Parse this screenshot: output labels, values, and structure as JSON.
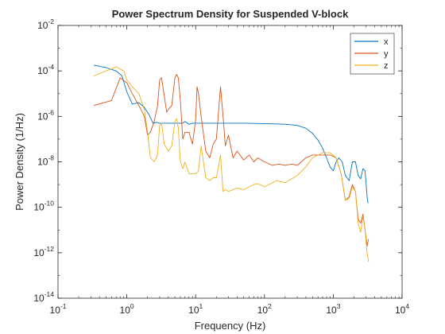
{
  "chart_data": {
    "type": "line",
    "title": "Power Spectrum Density for Suspended V-block",
    "xlabel": "Frequency (Hz)",
    "ylabel": "Power Density (1/Hz)",
    "xscale": "log",
    "yscale": "log",
    "xlim": [
      0.1,
      10000
    ],
    "ylim": [
      1e-14,
      0.01
    ],
    "xticks": [
      {
        "value": 0.1,
        "base": "10",
        "exp": "-1"
      },
      {
        "value": 1,
        "base": "10",
        "exp": "0"
      },
      {
        "value": 10,
        "base": "10",
        "exp": "1"
      },
      {
        "value": 100,
        "base": "10",
        "exp": "2"
      },
      {
        "value": 1000,
        "base": "10",
        "exp": "3"
      },
      {
        "value": 10000,
        "base": "10",
        "exp": "4"
      }
    ],
    "yticks": [
      {
        "value": 1e-14,
        "base": "10",
        "exp": "-14"
      },
      {
        "value": 1e-12,
        "base": "10",
        "exp": "-12"
      },
      {
        "value": 1e-10,
        "base": "10",
        "exp": "-10"
      },
      {
        "value": 1e-08,
        "base": "10",
        "exp": "-8"
      },
      {
        "value": 1e-06,
        "base": "10",
        "exp": "-6"
      },
      {
        "value": 0.0001,
        "base": "10",
        "exp": "-4"
      },
      {
        "value": 0.01,
        "base": "10",
        "exp": "-2"
      }
    ],
    "grid": false,
    "legend_position": "top-right",
    "series": [
      {
        "name": "x",
        "color": "#0072BD",
        "x": [
          0.33,
          0.5,
          0.7,
          0.85,
          1.0,
          1.2,
          1.5,
          1.8,
          2.1,
          2.4,
          2.7,
          3.0,
          3.5,
          4.0,
          4.5,
          5.0,
          5.5,
          6.0,
          6.5,
          7.0,
          8.0,
          9.0,
          10,
          12,
          15,
          20,
          30,
          50,
          100,
          200,
          300,
          400,
          500,
          600,
          700,
          800,
          900,
          1000,
          1100,
          1200,
          1350,
          1500,
          1700,
          1900,
          2100,
          2300,
          2500,
          2700,
          2900,
          3100,
          3200
        ],
        "y": [
          0.00018,
          0.00014,
          0.0001,
          6e-05,
          1.2e-05,
          3.5e-06,
          4e-06,
          2.5e-06,
          1.2e-06,
          5e-07,
          5.5e-07,
          5e-07,
          5e-07,
          5e-07,
          5e-07,
          5e-07,
          5e-07,
          5e-07,
          5e-07,
          6e-07,
          4.5e-07,
          5e-07,
          5e-07,
          5e-07,
          5e-07,
          5e-07,
          5e-07,
          5e-07,
          4.8e-07,
          4.5e-07,
          4e-07,
          3e-07,
          1.8e-07,
          9e-08,
          4e-08,
          1.5e-08,
          6e-09,
          4e-09,
          1e-08,
          1.5e-08,
          1e-08,
          2.5e-09,
          1.5e-09,
          1e-08,
          1e-08,
          2.5e-09,
          1.8e-09,
          5e-09,
          4e-09,
          3e-10,
          1.5e-10
        ]
      },
      {
        "name": "y",
        "color": "#D95319",
        "x": [
          0.33,
          0.6,
          0.8,
          1.0,
          1.2,
          1.5,
          1.8,
          2.0,
          2.2,
          2.5,
          2.8,
          3.0,
          3.2,
          3.5,
          3.8,
          4.0,
          4.5,
          5.0,
          5.3,
          5.6,
          6.0,
          6.5,
          7.0,
          8.0,
          9.0,
          10,
          10.5,
          11,
          12,
          14,
          16,
          18,
          20,
          23,
          25,
          27,
          30,
          35,
          40,
          50,
          60,
          70,
          80,
          100,
          130,
          160,
          200,
          250,
          300,
          400,
          500,
          700,
          900,
          1100,
          1300,
          1500,
          1700,
          1900,
          2100,
          2300,
          2500,
          2700,
          2900,
          3100,
          3250
        ],
        "y": [
          3e-06,
          5e-06,
          5e-05,
          3e-05,
          1e-05,
          3e-06,
          1e-06,
          1.5e-07,
          2e-07,
          6e-07,
          3e-06,
          4e-05,
          5e-05,
          8e-06,
          1.5e-06,
          2e-06,
          3e-06,
          5e-05,
          7e-05,
          5e-05,
          5e-06,
          1e-07,
          2e-07,
          2e-07,
          6e-08,
          7e-07,
          2e-05,
          1e-05,
          1e-06,
          3e-08,
          1.5e-08,
          6e-08,
          1e-07,
          2e-05,
          1e-06,
          5e-08,
          1.5e-07,
          1.5e-08,
          3e-08,
          1.2e-08,
          2e-08,
          1e-08,
          1.5e-08,
          1e-08,
          7e-09,
          8e-09,
          7e-09,
          8e-09,
          7e-09,
          1.5e-08,
          2e-08,
          2e-08,
          2e-08,
          1.5e-08,
          3e-09,
          2e-10,
          3e-10,
          1e-09,
          5e-10,
          3e-11,
          2e-11,
          5e-11,
          1e-11,
          2e-12,
          4e-12
        ]
      },
      {
        "name": "z",
        "color": "#EDB120",
        "x": [
          0.33,
          0.5,
          0.7,
          0.9,
          1.0,
          1.2,
          1.5,
          1.8,
          2.0,
          2.2,
          2.5,
          2.8,
          3.0,
          3.2,
          3.5,
          4.0,
          4.5,
          5.0,
          5.3,
          5.6,
          6.0,
          6.5,
          7.0,
          8.0,
          9.0,
          10,
          11,
          12,
          14,
          16,
          18,
          20,
          23,
          25,
          27,
          30,
          35,
          40,
          50,
          60,
          70,
          80,
          100,
          150,
          200,
          300,
          400,
          500,
          700,
          900,
          1100,
          1300,
          1500,
          1700,
          1900,
          2100,
          2300,
          2500,
          2700,
          2900,
          3100,
          3250
        ],
        "y": [
          6e-05,
          0.0001,
          0.00015,
          0.0001,
          4e-05,
          2e-05,
          1e-05,
          2e-06,
          2e-07,
          1.5e-08,
          1e-08,
          2e-08,
          4e-07,
          5e-07,
          6e-08,
          3e-08,
          5e-08,
          6e-07,
          8e-07,
          3e-07,
          1e-08,
          5e-09,
          1e-08,
          3e-09,
          3e-09,
          3e-09,
          4e-09,
          5e-08,
          2e-09,
          1.5e-09,
          2e-09,
          2e-09,
          2e-08,
          5e-10,
          6e-10,
          5e-10,
          6e-10,
          7e-10,
          6e-10,
          8e-10,
          1e-09,
          1.1e-09,
          8e-10,
          1.5e-09,
          1.2e-09,
          2.5e-09,
          6e-09,
          1.5e-08,
          2.5e-08,
          2.5e-08,
          1.5e-08,
          3e-09,
          2e-10,
          2.5e-10,
          8e-10,
          5e-10,
          2e-11,
          8e-12,
          4e-11,
          1e-11,
          1e-12,
          4e-13
        ]
      }
    ]
  }
}
